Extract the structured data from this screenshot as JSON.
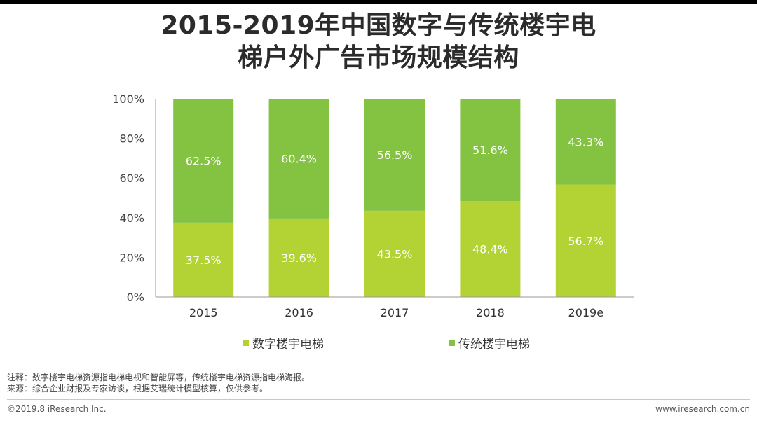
{
  "title_lines": [
    "2015-2019年中国数字与传统楼宇电",
    "梯户外广告市场规模结构"
  ],
  "notes": {
    "note": "注释：数字楼宇电梯资源指电梯电视和智能屏等，传统楼宇电梯资源指电梯海报。",
    "source": "来源：综合企业财报及专家访谈，根据艾瑞统计模型核算，仅供参考。"
  },
  "footer": {
    "copyright": "©2019.8 iResearch Inc.",
    "website": "www.iresearch.com.cn"
  },
  "colors": {
    "digital": "#b3d233",
    "traditional": "#84c241",
    "axis": "#999999"
  },
  "chart_data": {
    "type": "bar",
    "stacked": true,
    "categories": [
      "2015",
      "2016",
      "2017",
      "2018",
      "2019e"
    ],
    "series": [
      {
        "name": "数字楼宇电梯",
        "values": [
          37.5,
          39.6,
          43.5,
          48.4,
          56.7
        ],
        "labels": [
          "37.5%",
          "39.6%",
          "43.5%",
          "48.4%",
          "56.7%"
        ]
      },
      {
        "name": "传统楼宇电梯",
        "values": [
          62.5,
          60.4,
          56.5,
          51.6,
          43.3
        ],
        "labels": [
          "62.5%",
          "60.4%",
          "56.5%",
          "51.6%",
          "43.3%"
        ]
      }
    ],
    "ylim": [
      0,
      100
    ],
    "y_ticks": [
      "0%",
      "20%",
      "40%",
      "60%",
      "80%",
      "100%"
    ],
    "grid": false,
    "legend_position": "bottom"
  }
}
